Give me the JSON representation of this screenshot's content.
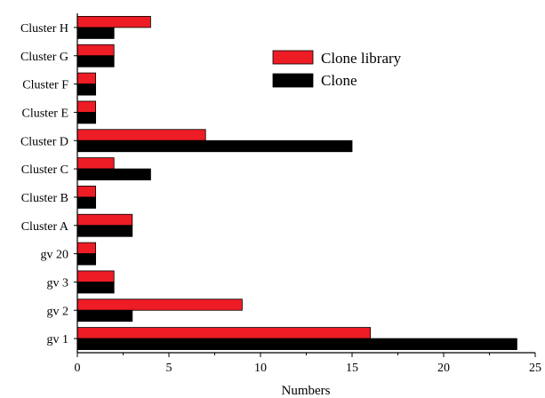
{
  "chart_data": {
    "type": "bar",
    "orientation": "horizontal",
    "categories": [
      "gv 1",
      "gv 2",
      "gv 3",
      "gv 20",
      "Cluster A",
      "Cluster B",
      "Cluster C",
      "Cluster D",
      "Cluster E",
      "Cluster F",
      "Cluster G",
      "Cluster H"
    ],
    "series": [
      {
        "name": "Clone library",
        "color": "#ee1c25",
        "values": [
          16,
          9,
          2,
          1,
          3,
          1,
          2,
          7,
          1,
          1,
          2,
          4
        ]
      },
      {
        "name": "Clone",
        "color": "#000000",
        "values": [
          24,
          3,
          2,
          1,
          3,
          1,
          4,
          15,
          1,
          1,
          2,
          2
        ]
      }
    ],
    "xlabel": "Numbers",
    "ylabel": "",
    "title": "",
    "xlim": [
      0,
      25
    ],
    "xticks": [
      "0",
      "5",
      "10",
      "15",
      "20",
      "25"
    ],
    "grid": false,
    "legend_position": "top-right"
  }
}
